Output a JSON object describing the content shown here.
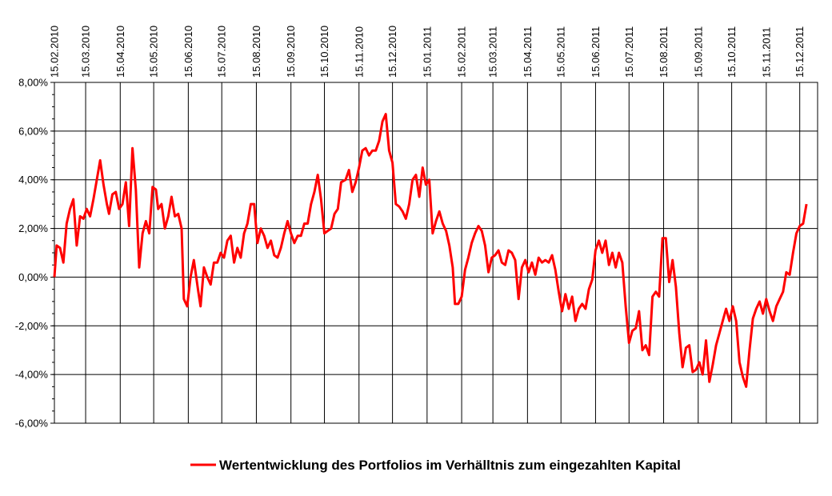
{
  "chart_data": {
    "type": "line",
    "title": "",
    "xlabel": "",
    "ylabel": "",
    "y_unit": "%",
    "ylim": [
      -6,
      8
    ],
    "yticks": [
      -6,
      -4,
      -2,
      0,
      2,
      4,
      6,
      8
    ],
    "ytick_labels": [
      "-6,00%",
      "-4,00%",
      "-2,00%",
      "0,00%",
      "2,00%",
      "4,00%",
      "6,00%",
      "8,00%"
    ],
    "x_axis_position": "top",
    "x_tick_labels": [
      "15.02.2010",
      "15.03.2010",
      "15.04.2010",
      "15.05.2010",
      "15.06.2010",
      "15.07.2010",
      "15.08.2010",
      "15.09.2010",
      "15.10.2010",
      "15.11.2010",
      "15.12.2010",
      "15.01.2011",
      "15.02.2011",
      "15.03.2011",
      "15.04.2011",
      "15.05.2011",
      "15.06.2011",
      "15.07.2011",
      "15.08.2011",
      "15.09.2011",
      "15.10.2011",
      "15.11.2011",
      "15.12.2011"
    ],
    "xlim": [
      "2010-02-15",
      "2011-12-31"
    ],
    "grid": true,
    "legend_position": "bottom",
    "series": [
      {
        "name": "Wertentwicklung des Portfolios im Verhälltnis zum eingezahlten Kapital",
        "color": "#ff0000",
        "points": [
          [
            "2010-02-15",
            0.0
          ],
          [
            "2010-02-17",
            1.3
          ],
          [
            "2010-02-20",
            1.2
          ],
          [
            "2010-02-23",
            0.6
          ],
          [
            "2010-02-26",
            2.2
          ],
          [
            "2010-03-01",
            2.8
          ],
          [
            "2010-03-04",
            3.2
          ],
          [
            "2010-03-07",
            1.3
          ],
          [
            "2010-03-10",
            2.5
          ],
          [
            "2010-03-13",
            2.4
          ],
          [
            "2010-03-16",
            2.8
          ],
          [
            "2010-03-19",
            2.5
          ],
          [
            "2010-03-22",
            3.2
          ],
          [
            "2010-03-25",
            4.0
          ],
          [
            "2010-03-28",
            4.8
          ],
          [
            "2010-03-31",
            3.8
          ],
          [
            "2010-04-03",
            3.0
          ],
          [
            "2010-04-05",
            2.6
          ],
          [
            "2010-04-08",
            3.4
          ],
          [
            "2010-04-11",
            3.5
          ],
          [
            "2010-04-14",
            2.8
          ],
          [
            "2010-04-17",
            3.0
          ],
          [
            "2010-04-20",
            3.9
          ],
          [
            "2010-04-23",
            2.1
          ],
          [
            "2010-04-26",
            5.3
          ],
          [
            "2010-04-29",
            3.6
          ],
          [
            "2010-05-02",
            0.4
          ],
          [
            "2010-05-05",
            1.8
          ],
          [
            "2010-05-08",
            2.3
          ],
          [
            "2010-05-11",
            1.8
          ],
          [
            "2010-05-14",
            3.7
          ],
          [
            "2010-05-17",
            3.6
          ],
          [
            "2010-05-19",
            2.8
          ],
          [
            "2010-05-22",
            3.0
          ],
          [
            "2010-05-25",
            2.0
          ],
          [
            "2010-05-28",
            2.5
          ],
          [
            "2010-05-31",
            3.3
          ],
          [
            "2010-06-03",
            2.5
          ],
          [
            "2010-06-06",
            2.6
          ],
          [
            "2010-06-09",
            2.0
          ],
          [
            "2010-06-11",
            -0.9
          ],
          [
            "2010-06-14",
            -1.2
          ],
          [
            "2010-06-17",
            0.0
          ],
          [
            "2010-06-20",
            0.7
          ],
          [
            "2010-06-24",
            -0.6
          ],
          [
            "2010-06-26",
            -1.2
          ],
          [
            "2010-06-29",
            0.4
          ],
          [
            "2010-07-02",
            0.0
          ],
          [
            "2010-07-05",
            -0.3
          ],
          [
            "2010-07-08",
            0.6
          ],
          [
            "2010-07-11",
            0.6
          ],
          [
            "2010-07-14",
            1.0
          ],
          [
            "2010-07-17",
            0.8
          ],
          [
            "2010-07-20",
            1.5
          ],
          [
            "2010-07-23",
            1.7
          ],
          [
            "2010-07-26",
            0.6
          ],
          [
            "2010-07-29",
            1.2
          ],
          [
            "2010-08-01",
            0.8
          ],
          [
            "2010-08-04",
            1.8
          ],
          [
            "2010-08-07",
            2.2
          ],
          [
            "2010-08-10",
            3.0
          ],
          [
            "2010-08-13",
            3.0
          ],
          [
            "2010-08-16",
            1.4
          ],
          [
            "2010-08-19",
            2.0
          ],
          [
            "2010-08-22",
            1.7
          ],
          [
            "2010-08-25",
            1.2
          ],
          [
            "2010-08-28",
            1.5
          ],
          [
            "2010-08-31",
            0.9
          ],
          [
            "2010-09-03",
            0.8
          ],
          [
            "2010-09-06",
            1.2
          ],
          [
            "2010-09-09",
            1.8
          ],
          [
            "2010-09-12",
            2.3
          ],
          [
            "2010-09-15",
            1.8
          ],
          [
            "2010-09-18",
            1.4
          ],
          [
            "2010-09-21",
            1.7
          ],
          [
            "2010-09-24",
            1.7
          ],
          [
            "2010-09-27",
            2.2
          ],
          [
            "2010-09-30",
            2.2
          ],
          [
            "2010-10-03",
            3.0
          ],
          [
            "2010-10-06",
            3.5
          ],
          [
            "2010-10-09",
            4.2
          ],
          [
            "2010-10-12",
            3.2
          ],
          [
            "2010-10-15",
            1.8
          ],
          [
            "2010-10-18",
            1.9
          ],
          [
            "2010-10-21",
            2.0
          ],
          [
            "2010-10-24",
            2.6
          ],
          [
            "2010-10-27",
            2.8
          ],
          [
            "2010-10-30",
            3.9
          ],
          [
            "2010-11-03",
            4.0
          ],
          [
            "2010-11-06",
            4.4
          ],
          [
            "2010-11-09",
            3.5
          ],
          [
            "2010-11-12",
            3.9
          ],
          [
            "2010-11-15",
            4.5
          ],
          [
            "2010-11-18",
            5.2
          ],
          [
            "2010-11-21",
            5.3
          ],
          [
            "2010-11-24",
            5.0
          ],
          [
            "2010-11-27",
            5.2
          ],
          [
            "2010-11-30",
            5.2
          ],
          [
            "2010-12-03",
            5.6
          ],
          [
            "2010-12-06",
            6.4
          ],
          [
            "2010-12-09",
            6.7
          ],
          [
            "2010-12-12",
            5.2
          ],
          [
            "2010-12-15",
            4.7
          ],
          [
            "2010-12-18",
            3.0
          ],
          [
            "2010-12-21",
            2.9
          ],
          [
            "2010-12-24",
            2.7
          ],
          [
            "2010-12-27",
            2.4
          ],
          [
            "2010-12-30",
            3.0
          ],
          [
            "2011-01-02",
            4.0
          ],
          [
            "2011-01-05",
            4.2
          ],
          [
            "2011-01-08",
            3.3
          ],
          [
            "2011-01-11",
            4.5
          ],
          [
            "2011-01-14",
            3.8
          ],
          [
            "2011-01-17",
            4.0
          ],
          [
            "2011-01-20",
            1.8
          ],
          [
            "2011-01-23",
            2.3
          ],
          [
            "2011-01-26",
            2.7
          ],
          [
            "2011-01-29",
            2.2
          ],
          [
            "2011-02-01",
            1.9
          ],
          [
            "2011-02-04",
            1.3
          ],
          [
            "2011-02-07",
            0.4
          ],
          [
            "2011-02-09",
            -1.1
          ],
          [
            "2011-02-12",
            -1.1
          ],
          [
            "2011-02-15",
            -0.8
          ],
          [
            "2011-02-18",
            0.3
          ],
          [
            "2011-02-21",
            0.8
          ],
          [
            "2011-02-24",
            1.4
          ],
          [
            "2011-02-27",
            1.8
          ],
          [
            "2011-03-02",
            2.1
          ],
          [
            "2011-03-05",
            1.9
          ],
          [
            "2011-03-08",
            1.3
          ],
          [
            "2011-03-11",
            0.2
          ],
          [
            "2011-03-14",
            0.8
          ],
          [
            "2011-03-17",
            0.9
          ],
          [
            "2011-03-20",
            1.1
          ],
          [
            "2011-03-23",
            0.6
          ],
          [
            "2011-03-26",
            0.5
          ],
          [
            "2011-03-29",
            1.1
          ],
          [
            "2011-04-01",
            1.0
          ],
          [
            "2011-04-04",
            0.7
          ],
          [
            "2011-04-07",
            -0.9
          ],
          [
            "2011-04-10",
            0.4
          ],
          [
            "2011-04-13",
            0.7
          ],
          [
            "2011-04-16",
            0.2
          ],
          [
            "2011-04-19",
            0.6
          ],
          [
            "2011-04-22",
            0.1
          ],
          [
            "2011-04-25",
            0.8
          ],
          [
            "2011-04-28",
            0.6
          ],
          [
            "2011-05-01",
            0.7
          ],
          [
            "2011-05-04",
            0.6
          ],
          [
            "2011-05-07",
            0.9
          ],
          [
            "2011-05-10",
            0.3
          ],
          [
            "2011-05-13",
            -0.6
          ],
          [
            "2011-05-16",
            -1.4
          ],
          [
            "2011-05-19",
            -0.7
          ],
          [
            "2011-05-22",
            -1.3
          ],
          [
            "2011-05-25",
            -0.8
          ],
          [
            "2011-05-28",
            -1.8
          ],
          [
            "2011-05-31",
            -1.3
          ],
          [
            "2011-06-03",
            -1.1
          ],
          [
            "2011-06-06",
            -1.3
          ],
          [
            "2011-06-09",
            -0.5
          ],
          [
            "2011-06-12",
            -0.1
          ],
          [
            "2011-06-15",
            1.1
          ],
          [
            "2011-06-18",
            1.5
          ],
          [
            "2011-06-21",
            1.0
          ],
          [
            "2011-06-24",
            1.5
          ],
          [
            "2011-06-27",
            0.5
          ],
          [
            "2011-06-30",
            1.0
          ],
          [
            "2011-07-03",
            0.4
          ],
          [
            "2011-07-06",
            1.0
          ],
          [
            "2011-07-09",
            0.6
          ],
          [
            "2011-07-12",
            -1.2
          ],
          [
            "2011-07-15",
            -2.7
          ],
          [
            "2011-07-18",
            -2.2
          ],
          [
            "2011-07-21",
            -2.1
          ],
          [
            "2011-07-24",
            -1.4
          ],
          [
            "2011-07-27",
            -3.0
          ],
          [
            "2011-07-30",
            -2.8
          ],
          [
            "2011-08-02",
            -3.2
          ],
          [
            "2011-08-05",
            -0.8
          ],
          [
            "2011-08-08",
            -0.6
          ],
          [
            "2011-08-11",
            -0.8
          ],
          [
            "2011-08-14",
            1.6
          ],
          [
            "2011-08-17",
            1.6
          ],
          [
            "2011-08-20",
            -0.2
          ],
          [
            "2011-08-23",
            0.7
          ],
          [
            "2011-08-26",
            -0.4
          ],
          [
            "2011-08-29",
            -2.3
          ],
          [
            "2011-09-01",
            -3.7
          ],
          [
            "2011-09-04",
            -2.9
          ],
          [
            "2011-09-07",
            -2.8
          ],
          [
            "2011-09-10",
            -3.9
          ],
          [
            "2011-09-13",
            -3.8
          ],
          [
            "2011-09-16",
            -3.5
          ],
          [
            "2011-09-19",
            -4.0
          ],
          [
            "2011-09-22",
            -2.6
          ],
          [
            "2011-09-25",
            -4.3
          ],
          [
            "2011-09-28",
            -3.6
          ],
          [
            "2011-10-01",
            -2.8
          ],
          [
            "2011-10-04",
            -2.3
          ],
          [
            "2011-10-07",
            -1.8
          ],
          [
            "2011-10-10",
            -1.3
          ],
          [
            "2011-10-13",
            -1.8
          ],
          [
            "2011-10-16",
            -1.2
          ],
          [
            "2011-10-19",
            -1.8
          ],
          [
            "2011-10-22",
            -3.5
          ],
          [
            "2011-10-25",
            -4.1
          ],
          [
            "2011-10-28",
            -4.5
          ],
          [
            "2011-10-31",
            -3.0
          ],
          [
            "2011-11-03",
            -1.7
          ],
          [
            "2011-11-06",
            -1.3
          ],
          [
            "2011-11-09",
            -1.0
          ],
          [
            "2011-11-12",
            -1.5
          ],
          [
            "2011-11-15",
            -0.9
          ],
          [
            "2011-11-18",
            -1.4
          ],
          [
            "2011-11-21",
            -1.8
          ],
          [
            "2011-11-24",
            -1.2
          ],
          [
            "2011-11-27",
            -0.9
          ],
          [
            "2011-11-30",
            -0.6
          ],
          [
            "2011-12-03",
            0.2
          ],
          [
            "2011-12-06",
            0.1
          ],
          [
            "2011-12-09",
            1.0
          ],
          [
            "2011-12-12",
            1.8
          ],
          [
            "2011-12-15",
            2.1
          ],
          [
            "2011-12-18",
            2.2
          ],
          [
            "2011-12-21",
            3.0
          ]
        ]
      }
    ]
  }
}
